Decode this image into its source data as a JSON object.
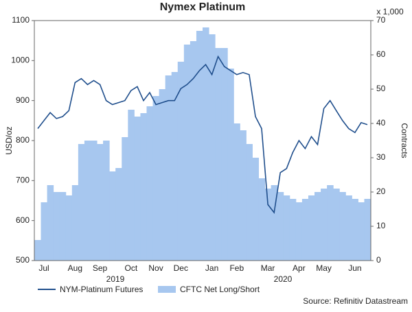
{
  "chart_data": {
    "type": "line",
    "title": "Nymex Platinum",
    "ylabel": "USD/oz",
    "y2label": "Contracts",
    "y2unit": "x 1,000",
    "source": "Source: Refinitiv Datastream",
    "x_groups": [
      "2019",
      "2020"
    ],
    "categories": [
      null,
      "Jul",
      null,
      null,
      null,
      null,
      "Aug",
      null,
      null,
      null,
      "Sep",
      null,
      null,
      null,
      null,
      "Oct",
      null,
      null,
      null,
      "Nov",
      null,
      null,
      null,
      "Dec",
      null,
      null,
      null,
      null,
      "Jan",
      null,
      null,
      null,
      "Feb",
      null,
      null,
      null,
      null,
      "Mar",
      null,
      null,
      null,
      null,
      "Apr",
      null,
      null,
      null,
      "May",
      null,
      null,
      null,
      null,
      "Jun",
      null,
      null
    ],
    "series": [
      {
        "name": "NYM-Platinum Futures",
        "color": "#1f4e8c",
        "type": "line",
        "values": [
          830,
          850,
          870,
          855,
          860,
          875,
          945,
          955,
          940,
          950,
          940,
          900,
          890,
          895,
          900,
          925,
          935,
          900,
          920,
          890,
          895,
          900,
          900,
          930,
          940,
          955,
          975,
          990,
          965,
          1010,
          985,
          975,
          965,
          970,
          965,
          860,
          830,
          640,
          620,
          720,
          730,
          770,
          800,
          780,
          810,
          790,
          880,
          900,
          875,
          850,
          830,
          820,
          845,
          840
        ]
      },
      {
        "name": "CFTC Net Long/Short",
        "color": "#a7c7ef",
        "type": "area",
        "axis": "y2",
        "values": [
          6,
          17,
          22,
          20,
          20,
          19,
          22,
          34,
          35,
          35,
          34,
          35,
          26,
          27,
          36,
          44,
          42,
          43,
          45,
          48,
          50,
          54,
          55,
          58,
          63,
          64,
          67,
          68,
          66,
          62,
          62,
          56,
          40,
          38,
          34,
          30,
          24,
          21,
          22,
          20,
          19,
          18,
          17,
          18,
          19,
          20,
          21,
          22,
          21,
          20,
          19,
          18,
          17,
          18
        ]
      }
    ],
    "ylim": [
      500,
      1100
    ],
    "yticks": [
      500,
      600,
      700,
      800,
      900,
      1000,
      1100
    ],
    "y2lim": [
      0,
      70
    ],
    "y2ticks": [
      0,
      10,
      20,
      30,
      40,
      50,
      60,
      70
    ],
    "grid": false
  }
}
